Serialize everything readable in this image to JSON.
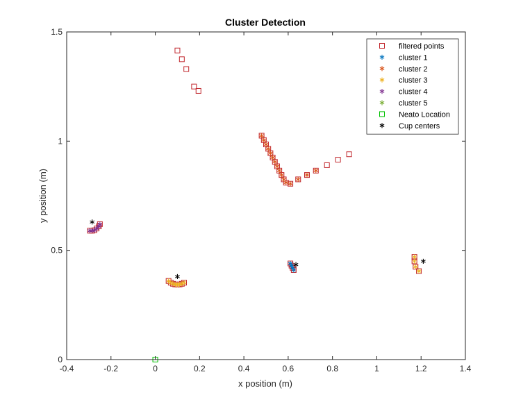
{
  "chart_data": {
    "type": "scatter",
    "title": "Cluster Detection",
    "xlabel": "x position (m)",
    "ylabel": "y position (m)",
    "xlim": [
      -0.4,
      1.4
    ],
    "ylim": [
      0,
      1.5
    ],
    "xticks": [
      "-0.4",
      "-0.2",
      "0",
      "0.2",
      "0.4",
      "0.6",
      "0.8",
      "1",
      "1.2",
      "1.4"
    ],
    "yticks": [
      "0",
      "0.5",
      "1",
      "1.5"
    ],
    "grid": false,
    "legend_position": "top-right",
    "series": [
      {
        "name": "filtered points",
        "marker": "square-open",
        "color": "#c1272d",
        "points": [
          [
            0.1,
            1.415
          ],
          [
            0.12,
            1.375
          ],
          [
            0.14,
            1.33
          ],
          [
            0.175,
            1.25
          ],
          [
            0.195,
            1.23
          ],
          [
            0.48,
            1.025
          ],
          [
            0.49,
            1.005
          ],
          [
            0.5,
            0.985
          ],
          [
            0.51,
            0.965
          ],
          [
            0.52,
            0.945
          ],
          [
            0.53,
            0.925
          ],
          [
            0.54,
            0.905
          ],
          [
            0.55,
            0.885
          ],
          [
            0.56,
            0.865
          ],
          [
            0.57,
            0.845
          ],
          [
            0.58,
            0.825
          ],
          [
            0.59,
            0.81
          ],
          [
            0.61,
            0.805
          ],
          [
            0.645,
            0.825
          ],
          [
            0.685,
            0.845
          ],
          [
            0.725,
            0.865
          ],
          [
            0.775,
            0.89
          ],
          [
            0.825,
            0.915
          ],
          [
            0.875,
            0.94
          ],
          [
            -0.295,
            0.59
          ],
          [
            -0.285,
            0.59
          ],
          [
            -0.275,
            0.592
          ],
          [
            -0.265,
            0.6
          ],
          [
            -0.255,
            0.61
          ],
          [
            -0.25,
            0.62
          ],
          [
            0.06,
            0.36
          ],
          [
            0.07,
            0.352
          ],
          [
            0.08,
            0.347
          ],
          [
            0.09,
            0.344
          ],
          [
            0.1,
            0.343
          ],
          [
            0.11,
            0.344
          ],
          [
            0.12,
            0.347
          ],
          [
            0.13,
            0.352
          ],
          [
            0.61,
            0.44
          ],
          [
            0.615,
            0.43
          ],
          [
            0.62,
            0.42
          ],
          [
            0.625,
            0.41
          ],
          [
            1.17,
            0.47
          ],
          [
            1.17,
            0.45
          ],
          [
            1.175,
            0.425
          ],
          [
            1.19,
            0.405
          ]
        ]
      },
      {
        "name": "cluster 1",
        "marker": "asterisk",
        "color": "#0072bd",
        "points": [
          [
            0.61,
            0.44
          ],
          [
            0.615,
            0.43
          ],
          [
            0.62,
            0.42
          ],
          [
            0.625,
            0.41
          ]
        ]
      },
      {
        "name": "cluster 2",
        "marker": "asterisk",
        "color": "#d95319",
        "points": [
          [
            0.48,
            1.025
          ],
          [
            0.49,
            1.005
          ],
          [
            0.5,
            0.985
          ],
          [
            0.51,
            0.965
          ],
          [
            0.52,
            0.945
          ],
          [
            0.53,
            0.925
          ],
          [
            0.54,
            0.905
          ],
          [
            0.55,
            0.885
          ],
          [
            0.56,
            0.865
          ],
          [
            0.57,
            0.845
          ],
          [
            0.58,
            0.825
          ],
          [
            0.59,
            0.81
          ],
          [
            0.61,
            0.805
          ],
          [
            0.645,
            0.825
          ],
          [
            0.685,
            0.845
          ],
          [
            0.725,
            0.865
          ]
        ]
      },
      {
        "name": "cluster 3",
        "marker": "asterisk",
        "color": "#edb120",
        "points": [
          [
            0.06,
            0.36
          ],
          [
            0.07,
            0.352
          ],
          [
            0.08,
            0.347
          ],
          [
            0.09,
            0.344
          ],
          [
            0.1,
            0.343
          ],
          [
            0.11,
            0.344
          ],
          [
            0.12,
            0.347
          ],
          [
            0.13,
            0.352
          ],
          [
            1.17,
            0.47
          ],
          [
            1.17,
            0.45
          ],
          [
            1.175,
            0.425
          ],
          [
            1.19,
            0.405
          ]
        ]
      },
      {
        "name": "cluster 4",
        "marker": "asterisk",
        "color": "#7e2f8e",
        "points": [
          [
            -0.295,
            0.59
          ],
          [
            -0.285,
            0.59
          ],
          [
            -0.275,
            0.592
          ],
          [
            -0.265,
            0.6
          ],
          [
            -0.255,
            0.61
          ],
          [
            -0.25,
            0.62
          ]
        ]
      },
      {
        "name": "cluster 5",
        "marker": "asterisk",
        "color": "#77ac30",
        "points": []
      },
      {
        "name": "Neato Location",
        "marker": "square-open",
        "color": "#00c000",
        "points": [
          [
            0,
            0
          ]
        ]
      },
      {
        "name": "Cup centers",
        "marker": "asterisk",
        "color": "#000000",
        "points": [
          [
            -0.285,
            0.63
          ],
          [
            0.1,
            0.38
          ],
          [
            0.635,
            0.435
          ],
          [
            1.21,
            0.45
          ]
        ]
      }
    ]
  }
}
